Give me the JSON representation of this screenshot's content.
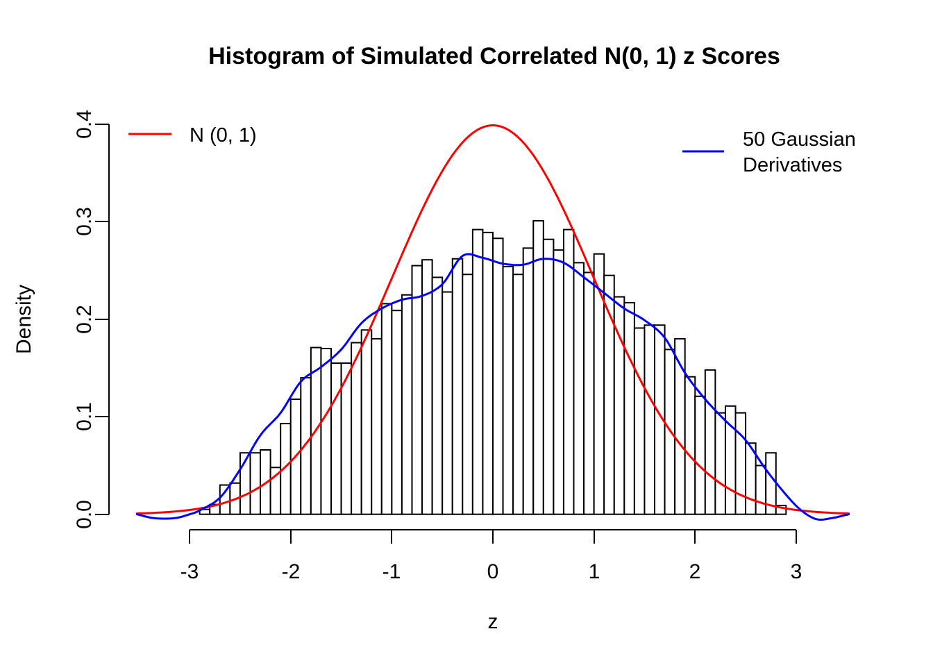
{
  "title": "Histogram of Simulated Correlated N(0, 1) z Scores",
  "axes": {
    "x_label": "z",
    "y_label": "Density",
    "x_ticks": [
      "-3",
      "-2",
      "-1",
      "0",
      "1",
      "2",
      "3"
    ],
    "y_ticks": [
      "0.0",
      "0.1",
      "0.2",
      "0.3",
      "0.4"
    ]
  },
  "legend": {
    "normal": {
      "label": "N (0, 1)",
      "color": "#ff0000"
    },
    "derivatives": {
      "label_line1": "50 Gaussian",
      "label_line2": "Derivatives",
      "color": "#0000ff"
    }
  },
  "colors": {
    "background": "#ffffff",
    "axis": "#000000",
    "bar_fill": "#ffffff",
    "bar_stroke": "#000000",
    "normal_curve": "#ff0000",
    "derivatives_curve": "#0000ff"
  },
  "chart_data": {
    "type": "bar",
    "subtype": "histogram-with-density-curves",
    "title": "Histogram of Simulated Correlated N(0, 1) z Scores",
    "xlabel": "z",
    "ylabel": "Density",
    "xlim": [
      -3.6,
      3.6
    ],
    "ylim": [
      0.0,
      0.4
    ],
    "x_tick_values": [
      -3,
      -2,
      -1,
      0,
      1,
      2,
      3
    ],
    "y_tick_values": [
      0.0,
      0.1,
      0.2,
      0.3,
      0.4
    ],
    "grid": false,
    "histogram": {
      "bin_start": -2.9,
      "bin_width": 0.1,
      "densities": [
        0.005,
        0.01,
        0.03,
        0.032,
        0.063,
        0.063,
        0.066,
        0.048,
        0.093,
        0.118,
        0.14,
        0.171,
        0.17,
        0.155,
        0.155,
        0.176,
        0.189,
        0.18,
        0.216,
        0.209,
        0.225,
        0.255,
        0.261,
        0.243,
        0.228,
        0.262,
        0.246,
        0.292,
        0.289,
        0.283,
        0.254,
        0.246,
        0.273,
        0.301,
        0.282,
        0.271,
        0.292,
        0.258,
        0.248,
        0.267,
        0.245,
        0.223,
        0.217,
        0.191,
        0.194,
        0.194,
        0.169,
        0.18,
        0.141,
        0.121,
        0.148,
        0.104,
        0.111,
        0.104,
        0.073,
        0.05,
        0.063,
        0.009
      ]
    },
    "curves": [
      {
        "name": "N (0, 1)",
        "slug": "normal-curve",
        "type": "normal_pdf",
        "mean": 0,
        "sd": 1,
        "x_range": [
          -3.52,
          3.52
        ],
        "peak_density": 0.3989,
        "color": "#ff0000"
      },
      {
        "name": "50 Gaussian Derivatives",
        "slug": "derivatives-curve",
        "type": "smooth_points",
        "color": "#0000ff",
        "points": [
          [
            -3.52,
            0.0
          ],
          [
            -3.35,
            -0.004
          ],
          [
            -3.15,
            -0.004
          ],
          [
            -3.0,
            0.0
          ],
          [
            -2.9,
            0.004
          ],
          [
            -2.7,
            0.017
          ],
          [
            -2.5,
            0.046
          ],
          [
            -2.3,
            0.081
          ],
          [
            -2.1,
            0.104
          ],
          [
            -1.9,
            0.136
          ],
          [
            -1.7,
            0.151
          ],
          [
            -1.5,
            0.169
          ],
          [
            -1.3,
            0.196
          ],
          [
            -1.1,
            0.211
          ],
          [
            -0.9,
            0.22
          ],
          [
            -0.7,
            0.224
          ],
          [
            -0.5,
            0.236
          ],
          [
            -0.3,
            0.265
          ],
          [
            -0.1,
            0.263
          ],
          [
            0.1,
            0.257
          ],
          [
            0.3,
            0.256
          ],
          [
            0.5,
            0.262
          ],
          [
            0.7,
            0.258
          ],
          [
            0.9,
            0.243
          ],
          [
            1.1,
            0.227
          ],
          [
            1.3,
            0.211
          ],
          [
            1.5,
            0.199
          ],
          [
            1.7,
            0.181
          ],
          [
            1.9,
            0.145
          ],
          [
            2.1,
            0.118
          ],
          [
            2.3,
            0.096
          ],
          [
            2.5,
            0.076
          ],
          [
            2.7,
            0.046
          ],
          [
            2.9,
            0.02
          ],
          [
            3.05,
            0.004
          ],
          [
            3.2,
            -0.005
          ],
          [
            3.35,
            -0.004
          ],
          [
            3.52,
            0.0
          ]
        ]
      }
    ],
    "legend_entries": [
      {
        "label": "N (0, 1)",
        "color": "#ff0000",
        "position": "top-left-inside"
      },
      {
        "label": "50 Gaussian Derivatives",
        "color": "#0000ff",
        "position": "top-right-inside"
      }
    ]
  }
}
